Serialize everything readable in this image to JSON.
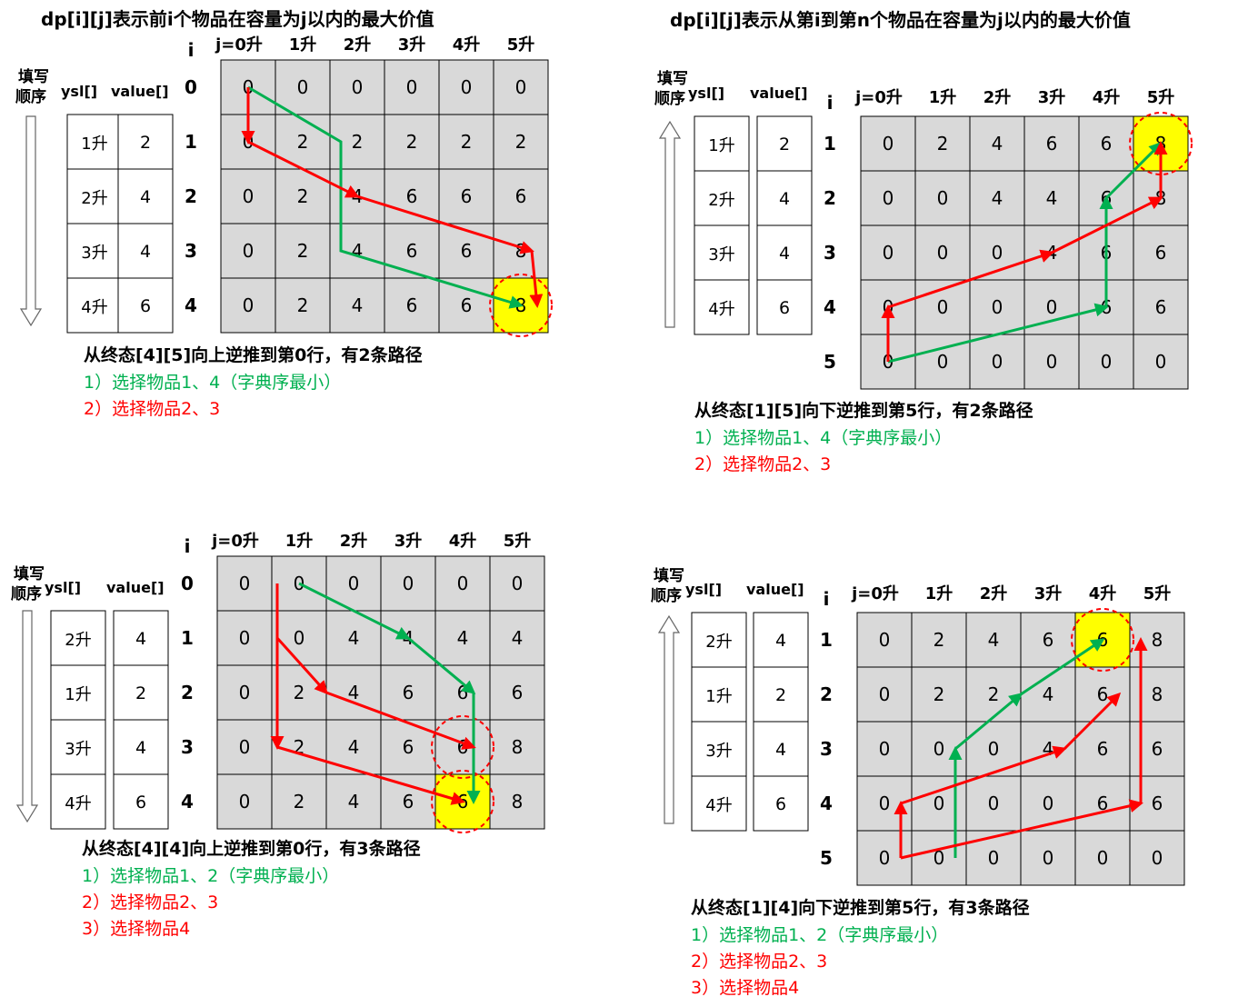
{
  "titles": {
    "left": "dp[i][j]表示前i个物品在容量为j以内的最大价值",
    "right": "dp[i][j]表示从第i到第n个物品在容量为j以内的最大价值"
  },
  "common": {
    "order_label_line1": "填写",
    "order_label_line2": "顺序",
    "ysl_header": "ysl[]",
    "value_header": "value[]",
    "i_header": "i",
    "j_prefix": "j=",
    "unit": "升"
  },
  "panels": [
    {
      "direction": "down",
      "capacities": [
        "0",
        "1",
        "2",
        "3",
        "4",
        "5"
      ],
      "row_labels": [
        "0",
        "1",
        "2",
        "3",
        "4"
      ],
      "items": [
        {
          "ysl": "1升",
          "value": "2"
        },
        {
          "ysl": "2升",
          "value": "4"
        },
        {
          "ysl": "3升",
          "value": "4"
        },
        {
          "ysl": "4升",
          "value": "6"
        }
      ],
      "dp": [
        [
          "0",
          "0",
          "0",
          "0",
          "0",
          "0"
        ],
        [
          "0",
          "2",
          "2",
          "2",
          "2",
          "2"
        ],
        [
          "0",
          "2",
          "4",
          "6",
          "6",
          "6"
        ],
        [
          "0",
          "2",
          "4",
          "6",
          "6",
          "8"
        ],
        [
          "0",
          "2",
          "4",
          "6",
          "6",
          "8"
        ]
      ],
      "highlight": [
        4,
        5
      ],
      "circles": [
        [
          4,
          5
        ]
      ],
      "summary": "从终态[4][5]向上逆推到第0行，有2条路径",
      "paths": [
        {
          "text": "1）选择物品1、4（字典序最小）",
          "color": "#00b050"
        },
        {
          "text": "2）选择物品2、3",
          "color": "#ff0000"
        }
      ]
    },
    {
      "direction": "up",
      "capacities": [
        "0",
        "1",
        "2",
        "3",
        "4",
        "5"
      ],
      "row_labels": [
        "1",
        "2",
        "3",
        "4",
        "5"
      ],
      "items": [
        {
          "ysl": "1升",
          "value": "2"
        },
        {
          "ysl": "2升",
          "value": "4"
        },
        {
          "ysl": "3升",
          "value": "4"
        },
        {
          "ysl": "4升",
          "value": "6"
        }
      ],
      "dp": [
        [
          "0",
          "2",
          "4",
          "6",
          "6",
          "8"
        ],
        [
          "0",
          "0",
          "4",
          "4",
          "6",
          "8"
        ],
        [
          "0",
          "0",
          "0",
          "4",
          "6",
          "6"
        ],
        [
          "0",
          "0",
          "0",
          "0",
          "6",
          "6"
        ],
        [
          "0",
          "0",
          "0",
          "0",
          "0",
          "0"
        ]
      ],
      "highlight": [
        0,
        5
      ],
      "circles": [
        [
          0,
          5
        ]
      ],
      "summary": "从终态[1][5]向下逆推到第5行，有2条路径",
      "paths": [
        {
          "text": "1）选择物品1、4（字典序最小）",
          "color": "#00b050"
        },
        {
          "text": "2）选择物品2、3",
          "color": "#ff0000"
        }
      ]
    },
    {
      "direction": "down",
      "capacities": [
        "0",
        "1",
        "2",
        "3",
        "4",
        "5"
      ],
      "row_labels": [
        "0",
        "1",
        "2",
        "3",
        "4"
      ],
      "items": [
        {
          "ysl": "2升",
          "value": "4"
        },
        {
          "ysl": "1升",
          "value": "2"
        },
        {
          "ysl": "3升",
          "value": "4"
        },
        {
          "ysl": "4升",
          "value": "6"
        }
      ],
      "dp": [
        [
          "0",
          "0",
          "0",
          "0",
          "0",
          "0"
        ],
        [
          "0",
          "0",
          "4",
          "4",
          "4",
          "4"
        ],
        [
          "0",
          "2",
          "4",
          "6",
          "6",
          "6"
        ],
        [
          "0",
          "2",
          "4",
          "6",
          "6",
          "8"
        ],
        [
          "0",
          "2",
          "4",
          "6",
          "6",
          "8"
        ]
      ],
      "highlight": [
        4,
        4
      ],
      "circles": [
        [
          4,
          4
        ],
        [
          3,
          4
        ]
      ],
      "summary": "从终态[4][4]向上逆推到第0行，有3条路径",
      "paths": [
        {
          "text": "1）选择物品1、2（字典序最小）",
          "color": "#00b050"
        },
        {
          "text": "2）选择物品2、3",
          "color": "#ff0000"
        },
        {
          "text": "3）选择物品4",
          "color": "#ff0000"
        }
      ]
    },
    {
      "direction": "up",
      "capacities": [
        "0",
        "1",
        "2",
        "3",
        "4",
        "5"
      ],
      "row_labels": [
        "1",
        "2",
        "3",
        "4",
        "5"
      ],
      "items": [
        {
          "ysl": "2升",
          "value": "4"
        },
        {
          "ysl": "1升",
          "value": "2"
        },
        {
          "ysl": "3升",
          "value": "4"
        },
        {
          "ysl": "4升",
          "value": "6"
        }
      ],
      "dp": [
        [
          "0",
          "2",
          "4",
          "6",
          "6",
          "8"
        ],
        [
          "0",
          "2",
          "2",
          "4",
          "6",
          "8"
        ],
        [
          "0",
          "0",
          "0",
          "4",
          "6",
          "6"
        ],
        [
          "0",
          "0",
          "0",
          "0",
          "6",
          "6"
        ],
        [
          "0",
          "0",
          "0",
          "0",
          "0",
          "0"
        ]
      ],
      "highlight": [
        0,
        4
      ],
      "circles": [
        [
          0,
          4
        ]
      ],
      "summary": "从终态[1][4]向下逆推到第5行，有3条路径",
      "paths": [
        {
          "text": "1）选择物品1、2（字典序最小）",
          "color": "#00b050"
        },
        {
          "text": "2）选择物品2、3",
          "color": "#ff0000"
        },
        {
          "text": "3）选择物品4",
          "color": "#ff0000"
        }
      ]
    }
  ],
  "colors": {
    "cell_fill": "#d9d9d9",
    "highlight_fill": "#ffff00",
    "green": "#00b050",
    "red": "#ff0000"
  }
}
